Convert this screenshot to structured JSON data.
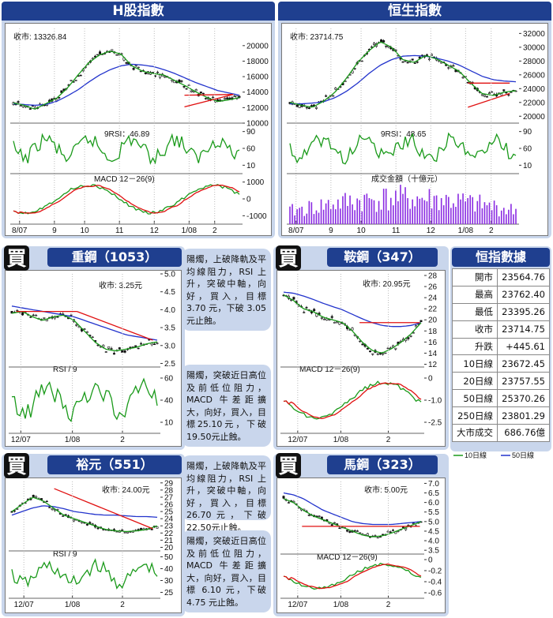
{
  "panels": {
    "hshares": {
      "title": "H股指數",
      "close_label": "收市: 13326.84",
      "rsi_label": "9RSI：46.89",
      "macd_label": "MACD 12－26(9)"
    },
    "hsi": {
      "title": "恒生指數",
      "close_label": "收市: 23714.75",
      "rsi_label": "9RSI：48.65",
      "turnover_label": "成交金額（十億元）"
    },
    "stock1053": {
      "title": "重鋼（1053）",
      "close_label": "收市: 3.25元",
      "rsi_label": "RSI / 9"
    },
    "stock347": {
      "title": "鞍鋼（347）",
      "close_label": "收市: 20.95元",
      "macd_label": "MACD 12－26(9)"
    },
    "stock551": {
      "title": "裕元（551）",
      "close_label": "收市: 24.00元",
      "rsi_label": "RSI / 9"
    },
    "stock323": {
      "title": "馬鋼（323）",
      "close_label": "收市: 5.00元",
      "macd_label": "MACD 12－26(9)"
    }
  },
  "notes": {
    "n1053": "陽燭，上破降軌及平均線阻力，RSI 上升，突破中軸，向好，買入，目標 3.70 元，下破 3.05 元止蝕。",
    "n347": "陽燭，突破近日高位及前低位阻力，MACD 牛差距擴大，向好，買入，目標25.10元，下破 19.50元止蝕。",
    "n551": "陽燭，上破降軌及平均線阻力，RSI 上升，突破中軸，向好，買入，目標26.70元，下破22.50元止蝕。",
    "n323": "陽燭，突破近日高位及前低位阻力，MACD 牛差距擴大，向好，買入，目標 6.10 元，下破 4.75 元止蝕。"
  },
  "buy_badge": "買",
  "stats_table": {
    "title": "恒指數據",
    "rows": [
      {
        "k": "開市",
        "v": "23564.76"
      },
      {
        "k": "最高",
        "v": "23762.40"
      },
      {
        "k": "最低",
        "v": "23395.26"
      },
      {
        "k": "收市",
        "v": "23714.75"
      },
      {
        "k": "升跌",
        "v": "+445.61"
      },
      {
        "k": "10日線",
        "v": "23672.45"
      },
      {
        "k": "20日線",
        "v": "23757.55"
      },
      {
        "k": "50日線",
        "v": "25370.26"
      },
      {
        "k": "250日線",
        "v": "23801.29"
      },
      {
        "k": "大市成交",
        "v": "686.76億"
      }
    ],
    "legend": {
      "ma10": "10日線",
      "ma50": "50日線"
    }
  },
  "colors": {
    "ma_green": "#1a9a1a",
    "ma_blue": "#2233cc",
    "trend_red": "#e01010",
    "volume_purple": "#8a2be2",
    "title_blue": "#1f3f8f",
    "panel_bg": "#c9d6ec"
  },
  "chart_data": [
    {
      "type": "line",
      "title": "H股指數",
      "x_ticks": [
        "8/07",
        "9",
        "10",
        "11",
        "12",
        "1/08",
        "2"
      ],
      "y_ticks": [
        "20000",
        "18000",
        "16000",
        "14000",
        "12000",
        "10000"
      ],
      "ylim": [
        10000,
        21000
      ],
      "rsi_ticks": [
        "90",
        "60",
        "10"
      ],
      "macd_ticks": [
        "1000",
        "0",
        "-1000"
      ],
      "series": [
        {
          "name": "10日線",
          "values": [
            12600,
            12300,
            11800,
            12500,
            13200,
            14500,
            16200,
            17800,
            18800,
            19300,
            18900,
            17400,
            16700,
            16400,
            16200,
            15500,
            14800,
            14000,
            13300,
            12800,
            13000,
            13300
          ]
        },
        {
          "name": "50日線",
          "values": [
            12500,
            12400,
            12300,
            12400,
            12800,
            13500,
            14300,
            15300,
            16200,
            16900,
            17400,
            17600,
            17500,
            17300,
            16900,
            16400,
            15800,
            15200,
            14700,
            14200,
            13900,
            13600
          ]
        }
      ]
    },
    {
      "type": "line",
      "title": "恒生指數",
      "x_ticks": [
        "8/07",
        "9",
        "10",
        "11",
        "12",
        "1/08",
        "2"
      ],
      "y_ticks": [
        "32000",
        "30000",
        "28000",
        "26000",
        "24000",
        "22000",
        "20000"
      ],
      "ylim": [
        19000,
        32500
      ],
      "rsi_ticks": [
        "90",
        "60",
        "10"
      ],
      "series": [
        {
          "name": "10日線",
          "values": [
            22000,
            21600,
            21300,
            22200,
            23500,
            25500,
            27800,
            29500,
            30800,
            30000,
            28200,
            27800,
            28800,
            28300,
            27400,
            26500,
            24800,
            23300,
            23000,
            23500,
            23700
          ]
        },
        {
          "name": "50日線",
          "values": [
            21800,
            21800,
            21900,
            22100,
            22700,
            23600,
            24800,
            26200,
            27400,
            28200,
            28700,
            28800,
            28700,
            28400,
            28000,
            27400,
            26600,
            25800,
            25300,
            25100,
            25000
          ]
        }
      ]
    },
    {
      "type": "line",
      "title": "重鋼（1053）",
      "x_ticks": [
        "12/07",
        "1/08",
        "2"
      ],
      "y_ticks": [
        "5.0",
        "4.5",
        "4.0",
        "3.5",
        "3.0",
        "2.5"
      ],
      "ylim": [
        2.4,
        5.0
      ],
      "rsi_ticks": [
        "60",
        "40",
        "10"
      ],
      "series": [
        {
          "name": "10日線",
          "values": [
            3.9,
            3.95,
            3.8,
            3.7,
            3.8,
            3.85,
            3.7,
            3.4,
            3.1,
            2.9,
            2.85,
            2.9,
            2.95,
            3.05,
            3.1
          ]
        },
        {
          "name": "50日線",
          "values": [
            4.1,
            4.05,
            4.0,
            3.95,
            3.9,
            3.85,
            3.8,
            3.7,
            3.6,
            3.5,
            3.4,
            3.3,
            3.25,
            3.2,
            3.15
          ]
        }
      ]
    },
    {
      "type": "line",
      "title": "鞍鋼（347）",
      "x_ticks": [
        "12/07",
        "1/08",
        "2"
      ],
      "y_ticks": [
        "28",
        "26",
        "24",
        "22",
        "20",
        "18",
        "16",
        "14",
        "12"
      ],
      "ylim": [
        11.5,
        28
      ],
      "macd_ticks": [
        "0",
        "-1.0",
        "-2.5"
      ],
      "series": [
        {
          "name": "10日線",
          "values": [
            24.5,
            23.5,
            22,
            21.5,
            20.5,
            20,
            19.5,
            18,
            16,
            14.5,
            14,
            14.8,
            16,
            17.5,
            19.5
          ]
        },
        {
          "name": "50日線",
          "values": [
            25,
            24.8,
            24.3,
            23.7,
            23,
            22.4,
            21.8,
            21,
            20.2,
            19.5,
            19,
            18.8,
            18.8,
            19,
            19.5
          ]
        }
      ]
    },
    {
      "type": "line",
      "title": "裕元（551）",
      "x_ticks": [
        "12/07",
        "1/08",
        "2"
      ],
      "y_ticks": [
        "29",
        "28",
        "27",
        "26",
        "25",
        "24",
        "23",
        "22",
        "21",
        "20"
      ],
      "ylim": [
        19.5,
        29.2
      ],
      "rsi_ticks": [
        "50",
        "40",
        "30",
        "25"
      ],
      "series": [
        {
          "name": "10日線",
          "values": [
            25,
            26,
            27,
            26.5,
            25.5,
            24.5,
            24,
            23.5,
            23,
            22.5,
            22.3,
            22.2,
            22.3,
            22.5,
            23
          ]
        },
        {
          "name": "50日線",
          "values": [
            24.5,
            25,
            25.5,
            25.8,
            25.7,
            25.4,
            25,
            24.8,
            24.6,
            24.5,
            24.5,
            24.4,
            24.3,
            24.3,
            24.2
          ]
        }
      ]
    },
    {
      "type": "line",
      "title": "馬鋼（323）",
      "x_ticks": [
        "12/07",
        "1/08",
        "2"
      ],
      "y_ticks": [
        "7.0",
        "6.5",
        "6.0",
        "5.5",
        "5.0",
        "4.5",
        "4.0",
        "3.5"
      ],
      "ylim": [
        3.3,
        7.1
      ],
      "macd_ticks": [
        "0",
        "-0.2",
        "-0.4",
        "-0.6"
      ],
      "series": [
        {
          "name": "10日線",
          "values": [
            6.2,
            6.0,
            5.6,
            5.3,
            5.1,
            4.9,
            4.7,
            4.5,
            4.3,
            4.2,
            4.25,
            4.4,
            4.6,
            4.8,
            5.0
          ]
        },
        {
          "name": "50日線",
          "values": [
            6.5,
            6.4,
            6.2,
            5.9,
            5.6,
            5.4,
            5.2,
            5.0,
            4.9,
            4.85,
            4.85,
            4.85,
            4.9,
            4.95,
            5.0
          ]
        }
      ]
    }
  ]
}
